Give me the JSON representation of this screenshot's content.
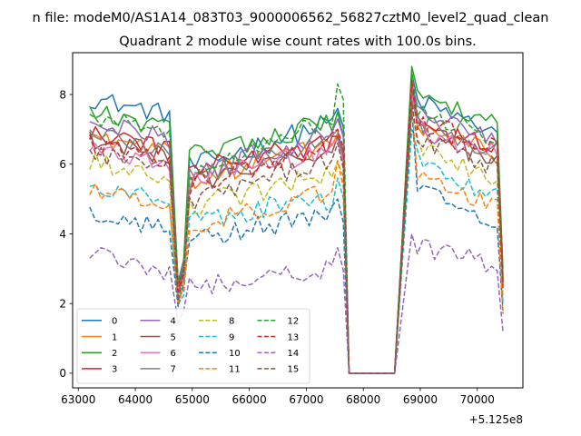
{
  "chart_data": {
    "type": "line",
    "suptitle": "n file: modeM0/AS1A14_083T03_9000006562_56827cztM0_level2_quad_clean",
    "title": "Quadrant 2 module wise count rates with 100.0s bins.",
    "xlabel": "",
    "ylabel": "",
    "offset_label": "+5.125e8",
    "xlim": [
      62900,
      70800
    ],
    "ylim": [
      -0.42,
      9.2
    ],
    "xticks": [
      63000,
      64000,
      65000,
      66000,
      67000,
      68000,
      69000,
      70000
    ],
    "xtick_labels": [
      "63000",
      "64000",
      "65000",
      "66000",
      "67000",
      "68000",
      "69000",
      "70000"
    ],
    "yticks": [
      0,
      2,
      4,
      6,
      8
    ],
    "ytick_labels": [
      "0",
      "2",
      "4",
      "6",
      "8"
    ],
    "grid": false,
    "legend": {
      "placement": "lower-left",
      "columns": 4
    },
    "structure": {
      "t_start": 63200,
      "t_step": 100,
      "seg1_end": 64650,
      "dip_start": 64750,
      "dip_end": 64850,
      "seg2_start": 64950,
      "seg2_end": 67450,
      "peak_at": 67550,
      "zero_start": 67750,
      "zero_end": 68550,
      "spike_at": 68850,
      "seg3_start": 68950,
      "seg3_end": 70350,
      "end_at": 70450
    },
    "series": [
      {
        "name": "0",
        "color": "#1f77b4",
        "dashed": false,
        "s1": 7.9,
        "dip": 2.6,
        "s2a": 5.9,
        "s2b": 7.2,
        "peak": 7.6,
        "spike": 8.6,
        "s3a": 7.8,
        "s3b": 6.9,
        "end": 2.8
      },
      {
        "name": "1",
        "color": "#ff7f0e",
        "dashed": false,
        "s1": 6.8,
        "dip": 2.4,
        "s2a": 5.5,
        "s2b": 6.6,
        "peak": 6.9,
        "spike": 8.3,
        "s3a": 7.0,
        "s3b": 6.3,
        "end": 2.6
      },
      {
        "name": "2",
        "color": "#2ca02c",
        "dashed": false,
        "s1": 7.5,
        "dip": 2.7,
        "s2a": 6.3,
        "s2b": 7.2,
        "peak": 7.5,
        "spike": 8.8,
        "s3a": 8.0,
        "s3b": 7.2,
        "end": 3.0
      },
      {
        "name": "3",
        "color": "#d62728",
        "dashed": false,
        "s1": 6.9,
        "dip": 2.5,
        "s2a": 5.9,
        "s2b": 6.6,
        "peak": 6.8,
        "spike": 8.4,
        "s3a": 7.2,
        "s3b": 6.4,
        "end": 2.7
      },
      {
        "name": "4",
        "color": "#9467bd",
        "dashed": false,
        "s1": 7.2,
        "dip": 2.5,
        "s2a": 5.7,
        "s2b": 6.9,
        "peak": 7.3,
        "spike": 8.3,
        "s3a": 7.5,
        "s3b": 6.6,
        "end": 2.7
      },
      {
        "name": "5",
        "color": "#8c564b",
        "dashed": false,
        "s1": 6.7,
        "dip": 2.3,
        "s2a": 5.4,
        "s2b": 6.5,
        "peak": 6.8,
        "spike": 7.9,
        "s3a": 7.0,
        "s3b": 6.0,
        "end": 2.5
      },
      {
        "name": "6",
        "color": "#e377c2",
        "dashed": false,
        "s1": 6.5,
        "dip": 2.4,
        "s2a": 5.6,
        "s2b": 6.3,
        "peak": 6.7,
        "spike": 8.0,
        "s3a": 7.0,
        "s3b": 6.3,
        "end": 2.6
      },
      {
        "name": "7",
        "color": "#7f7f7f",
        "dashed": false,
        "s1": 6.9,
        "dip": 2.4,
        "s2a": 5.6,
        "s2b": 6.7,
        "peak": 7.0,
        "spike": 8.1,
        "s3a": 7.2,
        "s3b": 6.4,
        "end": 2.7
      },
      {
        "name": "8",
        "color": "#bcbd22",
        "dashed": true,
        "s1": 6.1,
        "dip": 2.1,
        "s2a": 4.8,
        "s2b": 5.7,
        "peak": 6.1,
        "spike": 7.6,
        "s3a": 6.5,
        "s3b": 5.6,
        "end": 2.2
      },
      {
        "name": "9",
        "color": "#17becf",
        "dashed": true,
        "s1": 5.4,
        "dip": 1.9,
        "s2a": 4.4,
        "s2b": 5.0,
        "peak": 5.6,
        "spike": 7.0,
        "s3a": 6.1,
        "s3b": 5.1,
        "end": 2.0
      },
      {
        "name": "10",
        "color": "#1f77b4",
        "dashed": true,
        "s1": 4.6,
        "dip": 2.0,
        "s2a": 3.8,
        "s2b": 4.6,
        "peak": 5.0,
        "spike": 7.6,
        "s3a": 5.5,
        "s3b": 4.3,
        "end": 1.8
      },
      {
        "name": "11",
        "color": "#ff7f0e",
        "dashed": true,
        "s1": 5.3,
        "dip": 2.0,
        "s2a": 4.2,
        "s2b": 5.2,
        "peak": 6.1,
        "spike": 7.8,
        "s3a": 5.8,
        "s3b": 4.8,
        "end": 1.7
      },
      {
        "name": "12",
        "color": "#2ca02c",
        "dashed": true,
        "s1": 7.4,
        "dip": 2.5,
        "s2a": 5.8,
        "s2b": 7.3,
        "peak": 8.3,
        "spike": 8.7,
        "s3a": 7.6,
        "s3b": 6.7,
        "end": 2.7
      },
      {
        "name": "13",
        "color": "#d62728",
        "dashed": true,
        "s1": 6.6,
        "dip": 2.4,
        "s2a": 5.4,
        "s2b": 6.6,
        "peak": 7.0,
        "spike": 8.4,
        "s3a": 7.2,
        "s3b": 6.5,
        "end": 2.6
      },
      {
        "name": "14",
        "color": "#9467bd",
        "dashed": true,
        "s1": 3.4,
        "dip": 1.4,
        "s2a": 2.5,
        "s2b": 3.0,
        "peak": 3.6,
        "spike": 4.0,
        "s3a": 3.6,
        "s3b": 3.1,
        "end": 1.2
      },
      {
        "name": "15",
        "color": "#8c564b",
        "dashed": true,
        "s1": 6.3,
        "dip": 2.2,
        "s2a": 4.9,
        "s2b": 6.2,
        "peak": 6.6,
        "spike": 7.8,
        "s3a": 6.8,
        "s3b": 5.9,
        "end": 2.4
      }
    ]
  }
}
